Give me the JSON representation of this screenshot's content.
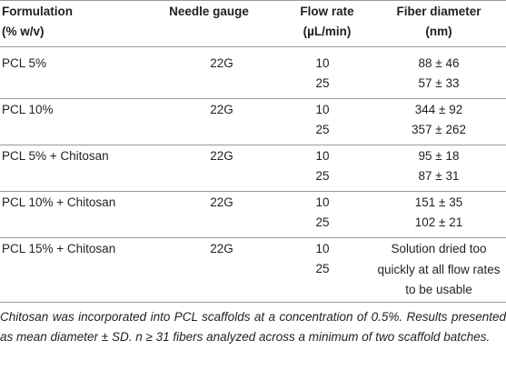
{
  "table": {
    "header": [
      [
        "Formulation",
        "(% w/v)"
      ],
      [
        "Needle gauge"
      ],
      [
        "Flow rate",
        "(µL/min)"
      ],
      [
        "Fiber diameter",
        "(nm)"
      ]
    ],
    "groups": [
      {
        "formulation": "PCL 5%",
        "gauge": "22G",
        "flow_rates": [
          10,
          25
        ],
        "diameters": [
          "88 ± 46",
          "57 ± 33"
        ]
      },
      {
        "formulation": "PCL 10%",
        "gauge": "22G",
        "flow_rates": [
          10,
          25
        ],
        "diameters": [
          "344 ± 92",
          "357 ± 262"
        ]
      },
      {
        "formulation": "PCL 5% + Chitosan",
        "gauge": "22G",
        "flow_rates": [
          10,
          25
        ],
        "diameters": [
          "95 ± 18",
          "87 ± 31"
        ]
      },
      {
        "formulation": "PCL 10% + Chitosan",
        "gauge": "22G",
        "flow_rates": [
          10,
          25
        ],
        "diameters": [
          "151 ± 35",
          "102 ± 21"
        ]
      },
      {
        "formulation": "PCL 15% + Chitosan",
        "gauge": "22G",
        "flow_rates": [
          10,
          25
        ],
        "diameter_note": "Solution dried too quickly at all flow rates to be usable"
      }
    ],
    "footnote": "Chitosan was incorporated into PCL scaffolds at a concentration of 0.5%. Results presented as mean diameter ± SD. n ≥ 31 fibers analyzed across a minimum of two scaffold batches."
  }
}
